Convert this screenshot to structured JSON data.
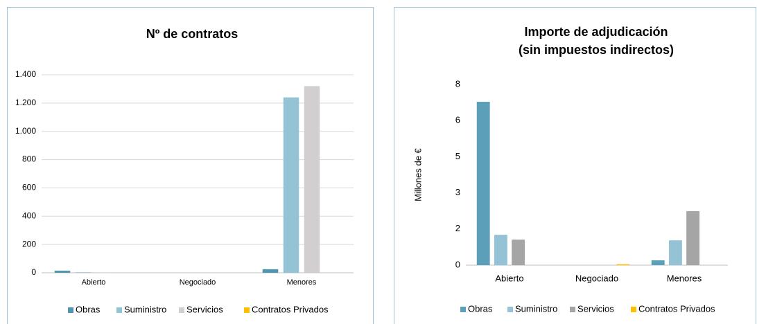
{
  "chart_data": [
    {
      "type": "bar",
      "title": [
        "Nº de contratos"
      ],
      "categories": [
        "Abierto",
        "Negociado",
        "Menores"
      ],
      "series": [
        {
          "name": "Obras",
          "color": "#4e95b0",
          "values": [
            15,
            0,
            25
          ]
        },
        {
          "name": "Suministro",
          "color": "#93c3d4",
          "values": [
            4,
            0,
            1240
          ]
        },
        {
          "name": "Servicios",
          "color": "#d3cfd0",
          "values": [
            3,
            0,
            1320
          ]
        },
        {
          "name": "Contratos Privados",
          "color": "#ffc000",
          "values": [
            0,
            0,
            0
          ]
        }
      ],
      "ylim": [
        0,
        1400
      ],
      "yticks": [
        0,
        200,
        400,
        600,
        800,
        {
          "value": 1000,
          "label": "1.000"
        },
        {
          "value": 1200,
          "label": "1.200"
        },
        {
          "value": 1400,
          "label": "1.400"
        }
      ],
      "grid": true,
      "legend": "bottom"
    },
    {
      "type": "bar",
      "title": [
        "Importe de adjudicación",
        "(sin impuestos indirectos)"
      ],
      "ylabel": "Millones de €",
      "categories": [
        "Abierto",
        "Negociado",
        "Menores"
      ],
      "series": [
        {
          "name": "Obras",
          "color": "#5b9fb9",
          "values": [
            6.78,
            0,
            0.2
          ]
        },
        {
          "name": "Suministro",
          "color": "#93c3d4",
          "values": [
            1.26,
            0,
            1.03
          ]
        },
        {
          "name": "Servicios",
          "color": "#a5a5a5",
          "values": [
            1.06,
            0,
            2.24
          ]
        },
        {
          "name": "Contratos Privados",
          "color": "#ffc000",
          "values": [
            0,
            0.04,
            0
          ]
        }
      ],
      "ylim": [
        0,
        7.5
      ],
      "yticks": [
        0,
        {
          "value": 1.5,
          "label": "2"
        },
        3,
        {
          "value": 4.5,
          "label": "5"
        },
        6,
        {
          "value": 7.5,
          "label": "8"
        }
      ],
      "grid": false,
      "legend": "bottom"
    }
  ]
}
